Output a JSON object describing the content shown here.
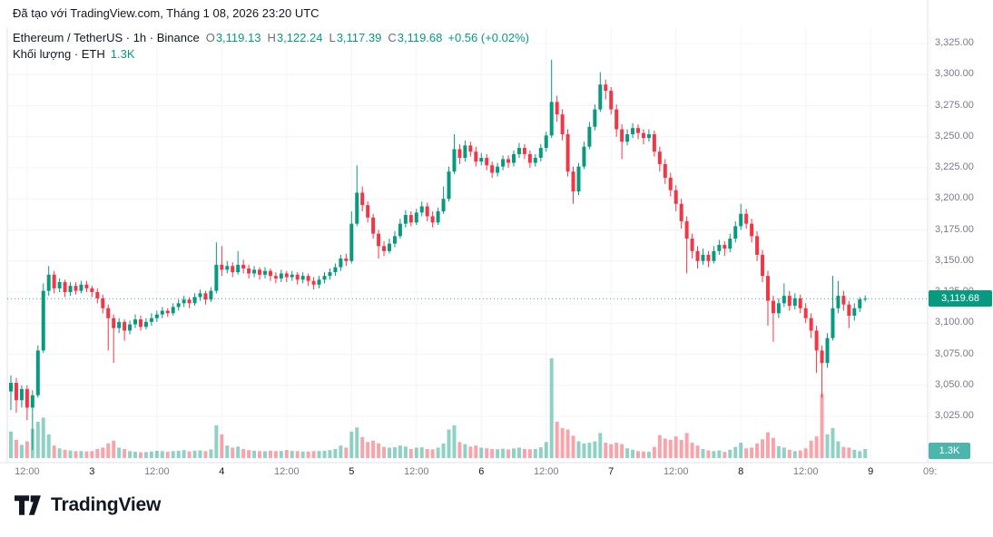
{
  "attribution": "Đã tạo với TradingView.com, Tháng 1 08, 2026 23:20 UTC",
  "legend": {
    "title": "Ethereum / TetherUS · 1h · Binance",
    "ohlc": {
      "o_label": "O",
      "o_value": "3,119.13",
      "h_label": "H",
      "h_value": "3,122.24",
      "l_label": "L",
      "l_value": "3,117.39",
      "c_label": "C",
      "c_value": "3,119.68"
    },
    "change": "+0.56 (+0.02%)",
    "volume_label": "Khối lượng · ETH",
    "volume_value": "1.3K"
  },
  "axis": {
    "price_badge": "3,119.68",
    "volume_badge": "1.3K"
  },
  "footer": {
    "brand": "TradingView"
  },
  "colors": {
    "up": "#089981",
    "down": "#f23645",
    "vol_up": "rgba(8,153,129,0.45)",
    "vol_down": "rgba(242,54,69,0.45)",
    "badge_price_bg": "#089981",
    "badge_vol_bg": "#4db6ac",
    "grid": "#f2f4f7",
    "border": "#e0e3eb",
    "axis_text": "#787b86",
    "text": "#131722"
  },
  "chart_data": {
    "type": "candlestick",
    "has_volume": true,
    "title": "Ethereum / TetherUS · 1h · Binance",
    "x_unit": "hour",
    "start": "2026-01-02 09:00 UTC",
    "end": "2026-01-08 23:00 UTC",
    "last_price": 3119.68,
    "last_volume_label": "1.3K",
    "price_axis": {
      "min": 3025,
      "max": 3325,
      "tick_step": 25
    },
    "y_ticks": [
      "3,325.00",
      "3,300.00",
      "3,275.00",
      "3,250.00",
      "3,225.00",
      "3,200.00",
      "3,175.00",
      "3,150.00",
      "3,125.00",
      "3,100.00",
      "3,075.00",
      "3,050.00",
      "3,025.00"
    ],
    "x_ticks": [
      {
        "label": "12:00",
        "i": 3,
        "major": false
      },
      {
        "label": "3",
        "i": 15,
        "major": true
      },
      {
        "label": "12:00",
        "i": 27,
        "major": false
      },
      {
        "label": "4",
        "i": 39,
        "major": true
      },
      {
        "label": "12:00",
        "i": 51,
        "major": false
      },
      {
        "label": "5",
        "i": 63,
        "major": true
      },
      {
        "label": "12:00",
        "i": 75,
        "major": false
      },
      {
        "label": "6",
        "i": 87,
        "major": true
      },
      {
        "label": "12:00",
        "i": 99,
        "major": false
      },
      {
        "label": "7",
        "i": 111,
        "major": true
      },
      {
        "label": "12:00",
        "i": 123,
        "major": false
      },
      {
        "label": "8",
        "i": 135,
        "major": true
      },
      {
        "label": "12:00",
        "i": 147,
        "major": false
      },
      {
        "label": "9",
        "i": 159,
        "major": true
      },
      {
        "label": "09:",
        "i": 170,
        "major": false
      }
    ],
    "ohlcv_format": [
      "open",
      "high",
      "low",
      "close",
      "volume"
    ],
    "candles": [
      [
        3045,
        3058,
        3030,
        3052,
        3800
      ],
      [
        3052,
        3056,
        3028,
        3038,
        2600
      ],
      [
        3038,
        3050,
        3032,
        3047,
        1900
      ],
      [
        3047,
        3050,
        3022,
        3032,
        2400
      ],
      [
        3032,
        3046,
        2998,
        3042,
        4200
      ],
      [
        3042,
        3082,
        3040,
        3078,
        5200
      ],
      [
        3078,
        3132,
        3076,
        3126,
        5800
      ],
      [
        3126,
        3146,
        3122,
        3139,
        3400
      ],
      [
        3139,
        3142,
        3124,
        3128,
        1800
      ],
      [
        3128,
        3136,
        3125,
        3133,
        1400
      ],
      [
        3133,
        3135,
        3121,
        3125,
        1200
      ],
      [
        3125,
        3133,
        3122,
        3130,
        1100
      ],
      [
        3130,
        3133,
        3123,
        3126,
        1000
      ],
      [
        3126,
        3134,
        3124,
        3131,
        1000
      ],
      [
        3131,
        3134,
        3125,
        3128,
        950
      ],
      [
        3128,
        3130,
        3121,
        3125,
        1000
      ],
      [
        3125,
        3128,
        3116,
        3120,
        1300
      ],
      [
        3120,
        3123,
        3108,
        3112,
        1500
      ],
      [
        3112,
        3115,
        3078,
        3104,
        2100
      ],
      [
        3104,
        3107,
        3068,
        3096,
        2500
      ],
      [
        3096,
        3104,
        3092,
        3101,
        1500
      ],
      [
        3101,
        3103,
        3086,
        3094,
        1300
      ],
      [
        3094,
        3102,
        3091,
        3099,
        1000
      ],
      [
        3099,
        3107,
        3096,
        3103,
        900
      ],
      [
        3103,
        3106,
        3094,
        3097,
        850
      ],
      [
        3097,
        3104,
        3095,
        3101,
        870
      ],
      [
        3101,
        3108,
        3098,
        3104,
        950
      ],
      [
        3104,
        3110,
        3101,
        3107,
        1050
      ],
      [
        3107,
        3113,
        3104,
        3110,
        1000
      ],
      [
        3110,
        3112,
        3105,
        3108,
        900
      ],
      [
        3108,
        3116,
        3106,
        3113,
        1000
      ],
      [
        3113,
        3119,
        3110,
        3116,
        1050
      ],
      [
        3116,
        3122,
        3113,
        3119,
        1150
      ],
      [
        3119,
        3121,
        3112,
        3116,
        950
      ],
      [
        3116,
        3124,
        3114,
        3121,
        1050
      ],
      [
        3121,
        3127,
        3118,
        3124,
        1100
      ],
      [
        3124,
        3126,
        3115,
        3119,
        1000
      ],
      [
        3119,
        3129,
        3117,
        3126,
        1250
      ],
      [
        3126,
        3165,
        3124,
        3147,
        4700
      ],
      [
        3147,
        3162,
        3138,
        3143,
        3400
      ],
      [
        3143,
        3150,
        3140,
        3146,
        1800
      ],
      [
        3146,
        3149,
        3137,
        3141,
        1500
      ],
      [
        3141,
        3158,
        3139,
        3147,
        1650
      ],
      [
        3147,
        3151,
        3140,
        3144,
        1300
      ],
      [
        3144,
        3147,
        3136,
        3140,
        1150
      ],
      [
        3140,
        3146,
        3137,
        3143,
        1050
      ],
      [
        3143,
        3145,
        3135,
        3139,
        1000
      ],
      [
        3139,
        3145,
        3136,
        3142,
        980
      ],
      [
        3142,
        3144,
        3134,
        3138,
        1050
      ],
      [
        3138,
        3141,
        3132,
        3136,
        1000
      ],
      [
        3136,
        3143,
        3133,
        3140,
        1020
      ],
      [
        3140,
        3142,
        3133,
        3137,
        1150
      ],
      [
        3137,
        3142,
        3134,
        3139,
        1050
      ],
      [
        3139,
        3141,
        3131,
        3135,
        1000
      ],
      [
        3135,
        3141,
        3132,
        3138,
        950
      ],
      [
        3138,
        3140,
        3130,
        3134,
        920
      ],
      [
        3134,
        3137,
        3127,
        3131,
        1000
      ],
      [
        3131,
        3138,
        3128,
        3135,
        1020
      ],
      [
        3135,
        3141,
        3132,
        3138,
        1050
      ],
      [
        3138,
        3144,
        3135,
        3141,
        1150
      ],
      [
        3141,
        3148,
        3138,
        3145,
        1300
      ],
      [
        3145,
        3155,
        3142,
        3152,
        1800
      ],
      [
        3152,
        3156,
        3146,
        3150,
        1500
      ],
      [
        3150,
        3190,
        3148,
        3180,
        3800
      ],
      [
        3180,
        3227,
        3178,
        3205,
        4400
      ],
      [
        3205,
        3210,
        3190,
        3195,
        3000
      ],
      [
        3195,
        3198,
        3181,
        3185,
        2300
      ],
      [
        3185,
        3188,
        3168,
        3172,
        2500
      ],
      [
        3172,
        3175,
        3152,
        3162,
        2100
      ],
      [
        3162,
        3166,
        3154,
        3158,
        1600
      ],
      [
        3158,
        3168,
        3156,
        3164,
        1500
      ],
      [
        3164,
        3174,
        3161,
        3170,
        1550
      ],
      [
        3170,
        3184,
        3168,
        3180,
        1800
      ],
      [
        3180,
        3191,
        3177,
        3187,
        1650
      ],
      [
        3187,
        3190,
        3178,
        3181,
        1300
      ],
      [
        3181,
        3192,
        3179,
        3189,
        1500
      ],
      [
        3189,
        3198,
        3186,
        3194,
        1550
      ],
      [
        3194,
        3197,
        3182,
        3186,
        1300
      ],
      [
        3186,
        3190,
        3177,
        3181,
        1250
      ],
      [
        3181,
        3193,
        3179,
        3190,
        1500
      ],
      [
        3190,
        3210,
        3188,
        3200,
        2100
      ],
      [
        3200,
        3226,
        3198,
        3222,
        4100
      ],
      [
        3222,
        3252,
        3220,
        3240,
        4700
      ],
      [
        3240,
        3244,
        3228,
        3233,
        2300
      ],
      [
        3233,
        3247,
        3230,
        3243,
        2000
      ],
      [
        3243,
        3246,
        3234,
        3238,
        1650
      ],
      [
        3238,
        3242,
        3226,
        3230,
        1800
      ],
      [
        3230,
        3237,
        3227,
        3233,
        1500
      ],
      [
        3233,
        3236,
        3223,
        3227,
        1400
      ],
      [
        3227,
        3230,
        3217,
        3221,
        1300
      ],
      [
        3221,
        3229,
        3218,
        3226,
        1280
      ],
      [
        3226,
        3235,
        3223,
        3232,
        1350
      ],
      [
        3232,
        3235,
        3225,
        3229,
        1250
      ],
      [
        3229,
        3239,
        3226,
        3236,
        1380
      ],
      [
        3236,
        3245,
        3233,
        3241,
        1500
      ],
      [
        3241,
        3244,
        3232,
        3236,
        1300
      ],
      [
        3236,
        3239,
        3225,
        3229,
        1280
      ],
      [
        3229,
        3236,
        3226,
        3233,
        1300
      ],
      [
        3233,
        3244,
        3230,
        3241,
        1550
      ],
      [
        3241,
        3254,
        3238,
        3251,
        2300
      ],
      [
        3251,
        3312,
        3249,
        3278,
        14300
      ],
      [
        3278,
        3283,
        3262,
        3268,
        5200
      ],
      [
        3268,
        3272,
        3247,
        3252,
        4300
      ],
      [
        3252,
        3256,
        3218,
        3222,
        4100
      ],
      [
        3222,
        3226,
        3196,
        3206,
        3200
      ],
      [
        3206,
        3229,
        3203,
        3226,
        2400
      ],
      [
        3226,
        3246,
        3224,
        3242,
        2100
      ],
      [
        3242,
        3262,
        3240,
        3258,
        2200
      ],
      [
        3258,
        3276,
        3255,
        3272,
        2400
      ],
      [
        3272,
        3302,
        3270,
        3292,
        3600
      ],
      [
        3292,
        3296,
        3280,
        3287,
        2200
      ],
      [
        3287,
        3290,
        3268,
        3272,
        2000
      ],
      [
        3272,
        3276,
        3250,
        3256,
        2200
      ],
      [
        3256,
        3260,
        3232,
        3246,
        2000
      ],
      [
        3246,
        3256,
        3243,
        3252,
        1400
      ],
      [
        3252,
        3261,
        3249,
        3257,
        1200
      ],
      [
        3257,
        3260,
        3248,
        3253,
        1000
      ],
      [
        3253,
        3256,
        3244,
        3249,
        950
      ],
      [
        3249,
        3256,
        3246,
        3252,
        900
      ],
      [
        3252,
        3255,
        3234,
        3238,
        1600
      ],
      [
        3238,
        3242,
        3222,
        3228,
        3300
      ],
      [
        3228,
        3232,
        3212,
        3217,
        2800
      ],
      [
        3217,
        3221,
        3202,
        3207,
        2600
      ],
      [
        3207,
        3211,
        3190,
        3196,
        3100
      ],
      [
        3196,
        3200,
        3176,
        3182,
        2600
      ],
      [
        3182,
        3186,
        3140,
        3168,
        3600
      ],
      [
        3168,
        3172,
        3152,
        3158,
        2200
      ],
      [
        3158,
        3162,
        3144,
        3150,
        1800
      ],
      [
        3150,
        3160,
        3147,
        3155,
        1300
      ],
      [
        3155,
        3158,
        3145,
        3150,
        1100
      ],
      [
        3150,
        3162,
        3148,
        3158,
        1000
      ],
      [
        3158,
        3167,
        3155,
        3163,
        1100
      ],
      [
        3163,
        3166,
        3154,
        3160,
        900
      ],
      [
        3160,
        3172,
        3157,
        3168,
        1200
      ],
      [
        3168,
        3182,
        3165,
        3178,
        1600
      ],
      [
        3178,
        3196,
        3175,
        3188,
        2200
      ],
      [
        3188,
        3192,
        3176,
        3180,
        1400
      ],
      [
        3180,
        3184,
        3165,
        3170,
        1500
      ],
      [
        3170,
        3174,
        3150,
        3155,
        2100
      ],
      [
        3155,
        3159,
        3133,
        3138,
        2700
      ],
      [
        3138,
        3142,
        3098,
        3118,
        3700
      ],
      [
        3118,
        3122,
        3085,
        3108,
        2900
      ],
      [
        3108,
        3120,
        3104,
        3116,
        1700
      ],
      [
        3116,
        3132,
        3113,
        3122,
        1500
      ],
      [
        3122,
        3126,
        3110,
        3114,
        1200
      ],
      [
        3114,
        3124,
        3111,
        3120,
        1000
      ],
      [
        3120,
        3123,
        3108,
        3112,
        1100
      ],
      [
        3112,
        3116,
        3100,
        3104,
        1400
      ],
      [
        3104,
        3108,
        3088,
        3094,
        2500
      ],
      [
        3094,
        3098,
        3060,
        3078,
        3100
      ],
      [
        3078,
        3082,
        3040,
        3068,
        9200
      ],
      [
        3068,
        3092,
        3064,
        3088,
        3400
      ],
      [
        3088,
        3138,
        3086,
        3112,
        4300
      ],
      [
        3112,
        3134,
        3108,
        3122,
        2400
      ],
      [
        3122,
        3126,
        3110,
        3115,
        1600
      ],
      [
        3115,
        3118,
        3096,
        3106,
        1500
      ],
      [
        3106,
        3116,
        3102,
        3112,
        1200
      ],
      [
        3112,
        3121,
        3109,
        3119.13,
        1000
      ],
      [
        3119.13,
        3122.24,
        3117.39,
        3119.68,
        1300
      ]
    ]
  }
}
